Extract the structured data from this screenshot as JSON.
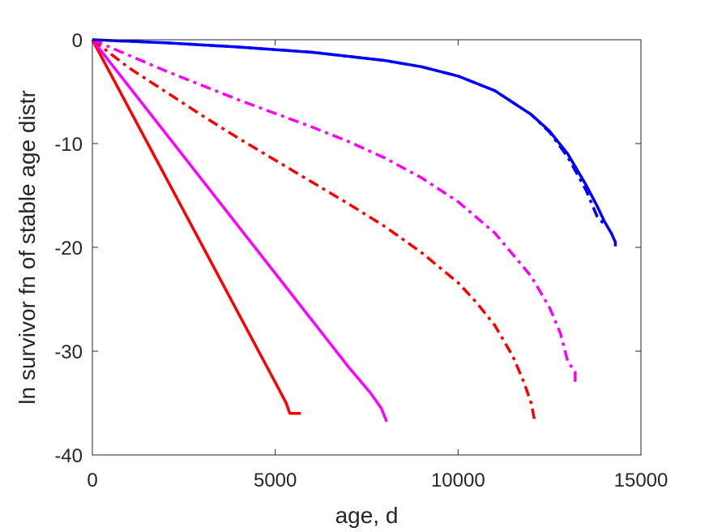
{
  "chart_data": {
    "type": "line",
    "title": "",
    "xlabel": "age, d",
    "ylabel": "ln survivor fn of stable age distr",
    "xlim": [
      0,
      15000
    ],
    "ylim": [
      -40,
      0
    ],
    "xticks": [
      0,
      5000,
      10000,
      15000
    ],
    "yticks": [
      0,
      -10,
      -20,
      -30,
      -40
    ],
    "xtick_labels": [
      "0",
      "5000",
      "10000",
      "15000"
    ],
    "ytick_labels": [
      "0",
      "-10",
      "-20",
      "-30",
      "-40"
    ],
    "grid": false,
    "series": [
      {
        "color": "#ff0000",
        "style": "solid",
        "x": [
          0,
          1000,
          2000,
          3000,
          4000,
          5000,
          5300,
          5400,
          5700
        ],
        "y": [
          0,
          -6.6,
          -13.2,
          -19.8,
          -26.4,
          -33.0,
          -35.0,
          -36.0,
          -36.0
        ]
      },
      {
        "color": "#ff00ff",
        "style": "solid",
        "x": [
          0,
          1000,
          2000,
          3000,
          4000,
          5000,
          6000,
          7000,
          7600,
          7900,
          8050
        ],
        "y": [
          0,
          -4.5,
          -9.0,
          -13.5,
          -18.0,
          -22.5,
          -27.0,
          -31.5,
          -34.0,
          -35.5,
          -36.8
        ]
      },
      {
        "color": "#ff0000",
        "style": "dashdot",
        "x": [
          0,
          1000,
          2000,
          3000,
          4000,
          5000,
          6000,
          7000,
          8000,
          9000,
          10000,
          10500,
          11000,
          11500,
          11800,
          12000,
          12100
        ],
        "y": [
          0,
          -2.7,
          -5.0,
          -7.3,
          -9.5,
          -11.6,
          -13.7,
          -15.8,
          -18.0,
          -20.5,
          -23.4,
          -25.3,
          -27.5,
          -30.5,
          -33.0,
          -35.0,
          -36.8
        ]
      },
      {
        "color": "#ff00ff",
        "style": "dashdot",
        "x": [
          0,
          1000,
          2000,
          3000,
          4000,
          5000,
          6000,
          7000,
          8000,
          9000,
          10000,
          11000,
          12000,
          12500,
          12800,
          13000,
          13200,
          13200
        ],
        "y": [
          0,
          -1.5,
          -3.0,
          -4.4,
          -5.8,
          -7.1,
          -8.4,
          -9.8,
          -11.4,
          -13.3,
          -15.6,
          -18.6,
          -22.8,
          -25.8,
          -28.3,
          -31.0,
          -32.0,
          -33.2
        ]
      },
      {
        "color": "#0000ff",
        "style": "dashdot",
        "x": [
          0,
          2000,
          4000,
          6000,
          8000,
          9000,
          10000,
          11000,
          12000,
          12500,
          13000,
          13500,
          13800,
          14000
        ],
        "y": [
          0,
          -0.3,
          -0.7,
          -1.2,
          -2.0,
          -2.6,
          -3.5,
          -4.9,
          -7.2,
          -8.9,
          -11.3,
          -14.5,
          -17.0,
          -17.8
        ]
      },
      {
        "color": "#0000ff",
        "style": "solid",
        "x": [
          0,
          2000,
          4000,
          6000,
          8000,
          9000,
          10000,
          11000,
          12000,
          12500,
          13000,
          13500,
          13800,
          14000,
          14200,
          14300,
          14300
        ],
        "y": [
          0,
          -0.3,
          -0.7,
          -1.2,
          -2.0,
          -2.6,
          -3.5,
          -4.9,
          -7.2,
          -8.8,
          -11.0,
          -14.0,
          -16.0,
          -17.5,
          -18.7,
          -19.5,
          -19.9
        ]
      }
    ]
  }
}
